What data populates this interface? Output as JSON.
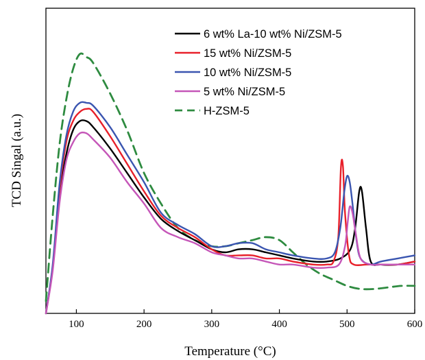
{
  "chart_data": {
    "type": "line",
    "title": "",
    "xlabel": "Temperature (°C)",
    "ylabel": "TCD Singal (a.u.)",
    "xlim": [
      55,
      600
    ],
    "ylim": [
      0,
      100
    ],
    "y_ticks_shown": false,
    "x_ticks": [
      100,
      200,
      300,
      400,
      500,
      600
    ],
    "x_tick_labels": [
      "100",
      "200",
      "300",
      "400",
      "500",
      "600"
    ],
    "grid": false,
    "legend_position": "top-right",
    "series": [
      {
        "name": "6 wt% La-10 wt% Ni/ZSM-5",
        "color": "#000000",
        "dash": "solid",
        "points": [
          [
            55,
            0
          ],
          [
            65,
            15
          ],
          [
            75,
            38
          ],
          [
            85,
            52
          ],
          [
            95,
            60
          ],
          [
            105,
            63
          ],
          [
            115,
            63
          ],
          [
            125,
            61
          ],
          [
            150,
            54
          ],
          [
            175,
            46
          ],
          [
            200,
            38
          ],
          [
            225,
            31
          ],
          [
            250,
            27
          ],
          [
            275,
            24
          ],
          [
            300,
            21
          ],
          [
            320,
            20
          ],
          [
            340,
            21
          ],
          [
            360,
            21
          ],
          [
            380,
            20
          ],
          [
            400,
            19
          ],
          [
            420,
            18
          ],
          [
            450,
            17
          ],
          [
            470,
            17
          ],
          [
            490,
            18
          ],
          [
            505,
            21
          ],
          [
            512,
            28
          ],
          [
            518,
            40
          ],
          [
            522,
            40
          ],
          [
            528,
            28
          ],
          [
            535,
            17
          ],
          [
            550,
            16
          ],
          [
            575,
            16
          ],
          [
            600,
            17
          ]
        ]
      },
      {
        "name": "15 wt% Ni/ZSM-5",
        "color": "#e8202a",
        "dash": "solid",
        "points": [
          [
            55,
            0
          ],
          [
            65,
            15
          ],
          [
            75,
            40
          ],
          [
            85,
            56
          ],
          [
            95,
            63
          ],
          [
            105,
            66
          ],
          [
            115,
            67
          ],
          [
            125,
            66
          ],
          [
            150,
            58
          ],
          [
            175,
            49
          ],
          [
            200,
            40
          ],
          [
            225,
            32
          ],
          [
            250,
            28
          ],
          [
            275,
            25
          ],
          [
            300,
            21
          ],
          [
            320,
            19
          ],
          [
            340,
            19
          ],
          [
            360,
            19
          ],
          [
            380,
            18
          ],
          [
            400,
            18
          ],
          [
            420,
            17
          ],
          [
            450,
            16
          ],
          [
            470,
            16
          ],
          [
            480,
            17
          ],
          [
            487,
            25
          ],
          [
            491,
            48
          ],
          [
            494,
            48
          ],
          [
            497,
            33
          ],
          [
            503,
            19
          ],
          [
            510,
            16
          ],
          [
            530,
            16
          ],
          [
            550,
            16
          ],
          [
            575,
            16
          ],
          [
            600,
            17
          ]
        ]
      },
      {
        "name": "10 wt% Ni/ZSM-5",
        "color": "#3a55b0",
        "dash": "solid",
        "points": [
          [
            55,
            0
          ],
          [
            65,
            16
          ],
          [
            75,
            42
          ],
          [
            85,
            58
          ],
          [
            95,
            66
          ],
          [
            105,
            69
          ],
          [
            115,
            69
          ],
          [
            125,
            68
          ],
          [
            150,
            61
          ],
          [
            175,
            52
          ],
          [
            200,
            43
          ],
          [
            225,
            33
          ],
          [
            250,
            29
          ],
          [
            275,
            26
          ],
          [
            300,
            22
          ],
          [
            320,
            22
          ],
          [
            340,
            23
          ],
          [
            360,
            23
          ],
          [
            380,
            21
          ],
          [
            400,
            20
          ],
          [
            420,
            19
          ],
          [
            450,
            18
          ],
          [
            470,
            18
          ],
          [
            482,
            20
          ],
          [
            490,
            28
          ],
          [
            496,
            40
          ],
          [
            500,
            45
          ],
          [
            504,
            43
          ],
          [
            508,
            36
          ],
          [
            514,
            24
          ],
          [
            520,
            18
          ],
          [
            535,
            16
          ],
          [
            550,
            17
          ],
          [
            575,
            18
          ],
          [
            600,
            19
          ]
        ]
      },
      {
        "name": "5 wt% Ni/ZSM-5",
        "color": "#c556b8",
        "dash": "solid",
        "points": [
          [
            55,
            0
          ],
          [
            65,
            14
          ],
          [
            75,
            36
          ],
          [
            85,
            50
          ],
          [
            95,
            56
          ],
          [
            105,
            59
          ],
          [
            115,
            59
          ],
          [
            125,
            57
          ],
          [
            150,
            51
          ],
          [
            175,
            43
          ],
          [
            200,
            36
          ],
          [
            225,
            28
          ],
          [
            250,
            25
          ],
          [
            275,
            23
          ],
          [
            300,
            20
          ],
          [
            320,
            19
          ],
          [
            340,
            18
          ],
          [
            360,
            18
          ],
          [
            380,
            17
          ],
          [
            400,
            16
          ],
          [
            420,
            16
          ],
          [
            450,
            15
          ],
          [
            470,
            15
          ],
          [
            488,
            16
          ],
          [
            497,
            22
          ],
          [
            501,
            30
          ],
          [
            504,
            35
          ],
          [
            508,
            33
          ],
          [
            513,
            26
          ],
          [
            520,
            18
          ],
          [
            535,
            16
          ],
          [
            550,
            16
          ],
          [
            575,
            16
          ],
          [
            600,
            16
          ]
        ]
      },
      {
        "name": "H-ZSM-5",
        "color": "#2e8b40",
        "dash": "dashed",
        "points": [
          [
            55,
            4
          ],
          [
            65,
            32
          ],
          [
            75,
            55
          ],
          [
            85,
            70
          ],
          [
            95,
            80
          ],
          [
            105,
            85
          ],
          [
            115,
            84
          ],
          [
            125,
            82
          ],
          [
            150,
            72
          ],
          [
            175,
            60
          ],
          [
            200,
            46
          ],
          [
            225,
            36
          ],
          [
            250,
            28
          ],
          [
            275,
            24
          ],
          [
            300,
            22
          ],
          [
            320,
            22
          ],
          [
            340,
            23
          ],
          [
            360,
            24
          ],
          [
            380,
            25
          ],
          [
            400,
            24
          ],
          [
            420,
            20
          ],
          [
            440,
            16
          ],
          [
            460,
            13
          ],
          [
            480,
            11
          ],
          [
            500,
            9
          ],
          [
            520,
            8
          ],
          [
            540,
            8
          ],
          [
            560,
            8.5
          ],
          [
            580,
            9
          ],
          [
            600,
            9
          ]
        ]
      }
    ]
  }
}
